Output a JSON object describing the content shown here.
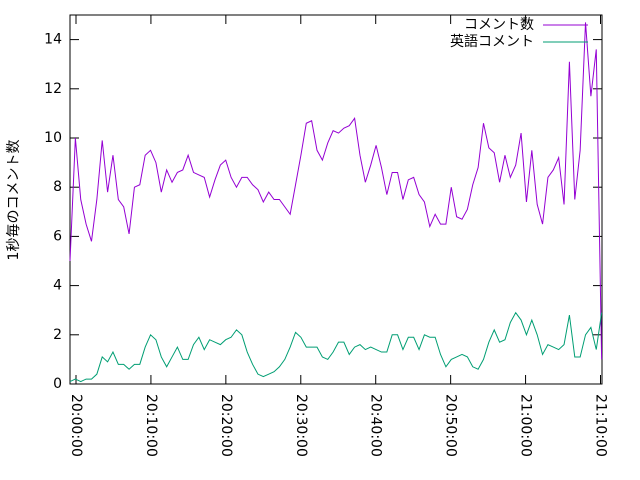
{
  "chart_data": {
    "type": "line",
    "ylabel": "1秒毎のコメント数",
    "x": [
      "19:59:12",
      "19:59:55",
      "20:00:38",
      "20:01:21",
      "20:02:04",
      "20:02:47",
      "20:03:30",
      "20:04:13",
      "20:04:56",
      "20:05:39",
      "20:06:22",
      "20:07:05",
      "20:07:48",
      "20:08:31",
      "20:09:14",
      "20:09:57",
      "20:10:40",
      "20:11:23",
      "20:12:06",
      "20:12:49",
      "20:13:32",
      "20:14:15",
      "20:14:58",
      "20:15:41",
      "20:16:24",
      "20:17:07",
      "20:17:50",
      "20:18:33",
      "20:19:16",
      "20:19:59",
      "20:20:42",
      "20:21:25",
      "20:22:08",
      "20:22:51",
      "20:23:34",
      "20:24:17",
      "20:25:00",
      "20:25:43",
      "20:26:26",
      "20:27:09",
      "20:27:52",
      "20:28:35",
      "20:29:18",
      "20:30:01",
      "20:30:44",
      "20:31:27",
      "20:32:10",
      "20:32:53",
      "20:33:36",
      "20:34:19",
      "20:35:02",
      "20:35:45",
      "20:36:28",
      "20:37:11",
      "20:37:54",
      "20:38:37",
      "20:39:20",
      "20:40:03",
      "20:40:46",
      "20:41:29",
      "20:42:12",
      "20:42:55",
      "20:43:38",
      "20:44:21",
      "20:45:04",
      "20:45:47",
      "20:46:30",
      "20:47:13",
      "20:47:56",
      "20:48:39",
      "20:49:22",
      "20:50:05",
      "20:50:48",
      "20:51:31",
      "20:52:14",
      "20:52:57",
      "20:53:40",
      "20:54:23",
      "20:55:06",
      "20:55:49",
      "20:56:32",
      "20:57:15",
      "20:57:58",
      "20:58:41",
      "20:59:24",
      "21:00:07",
      "21:00:50",
      "21:01:33",
      "21:02:16",
      "21:02:59",
      "21:03:42",
      "21:04:25",
      "21:05:08",
      "21:05:51",
      "21:06:34",
      "21:07:17",
      "21:08:00",
      "21:08:43",
      "21:09:26",
      "21:10:09"
    ],
    "series": [
      {
        "name": "コメント数",
        "color": "#9400d3",
        "values": [
          5,
          10,
          7.5,
          6.5,
          5.8,
          7.5,
          9.9,
          7.8,
          9.3,
          7.5,
          7.2,
          6.1,
          8,
          8.1,
          9.3,
          9.5,
          9,
          7.8,
          8.7,
          8.2,
          8.6,
          8.7,
          9.3,
          8.6,
          8.5,
          8.4,
          7.6,
          8.3,
          8.9,
          9.1,
          8.4,
          8,
          8.4,
          8.4,
          8.1,
          7.9,
          7.4,
          7.8,
          7.5,
          7.5,
          7.2,
          6.9,
          8.1,
          9.3,
          10.6,
          10.7,
          9.5,
          9.1,
          9.8,
          10.3,
          10.2,
          10.4,
          10.5,
          10.8,
          9.3,
          8.2,
          8.9,
          9.7,
          8.8,
          7.7,
          8.6,
          8.6,
          7.5,
          8.3,
          8.4,
          7.7,
          7.4,
          6.4,
          6.9,
          6.5,
          6.5,
          8,
          6.8,
          6.7,
          7.1,
          8.1,
          8.8,
          10.6,
          9.6,
          9.4,
          8.2,
          9.3,
          8.4,
          8.9,
          10.2,
          7.4,
          9.5,
          7.3,
          6.5,
          8.4,
          8.7,
          9.2,
          7.3,
          13.1,
          7.5,
          9.5,
          14.7,
          11.7,
          13.6,
          1.0
        ]
      },
      {
        "name": "英語コメント",
        "color": "#009e73",
        "values": [
          0.1,
          0.2,
          0.1,
          0.2,
          0.2,
          0.4,
          1.1,
          0.9,
          1.3,
          0.8,
          0.8,
          0.6,
          0.8,
          0.8,
          1.5,
          2.0,
          1.8,
          1.1,
          0.7,
          1.1,
          1.5,
          1.0,
          1.0,
          1.6,
          1.9,
          1.4,
          1.8,
          1.7,
          1.6,
          1.8,
          1.9,
          2.2,
          2.0,
          1.3,
          0.8,
          0.4,
          0.3,
          0.4,
          0.5,
          0.7,
          1.0,
          1.5,
          2.1,
          1.9,
          1.5,
          1.5,
          1.5,
          1.1,
          1.0,
          1.3,
          1.7,
          1.7,
          1.2,
          1.5,
          1.6,
          1.4,
          1.5,
          1.4,
          1.3,
          1.3,
          2.0,
          2.0,
          1.4,
          1.9,
          1.9,
          1.4,
          2.0,
          1.9,
          1.9,
          1.2,
          0.7,
          1.0,
          1.1,
          1.2,
          1.1,
          0.7,
          0.6,
          1.0,
          1.7,
          2.2,
          1.7,
          1.8,
          2.5,
          2.9,
          2.6,
          2.0,
          2.6,
          2.0,
          1.2,
          1.6,
          1.5,
          1.4,
          1.6,
          2.8,
          1.1,
          1.1,
          2.0,
          2.3,
          1.4,
          2.9
        ]
      }
    ],
    "xlim": [
      "19:59:12",
      "21:10:12"
    ],
    "xticks": [
      "20:00:00",
      "20:10:00",
      "20:20:00",
      "20:30:00",
      "20:40:00",
      "20:50:00",
      "21:00:00",
      "21:10:00"
    ],
    "ylim": [
      0,
      15
    ],
    "yticks": [
      0,
      2,
      4,
      6,
      8,
      10,
      12,
      14
    ],
    "legend": "top-right"
  }
}
